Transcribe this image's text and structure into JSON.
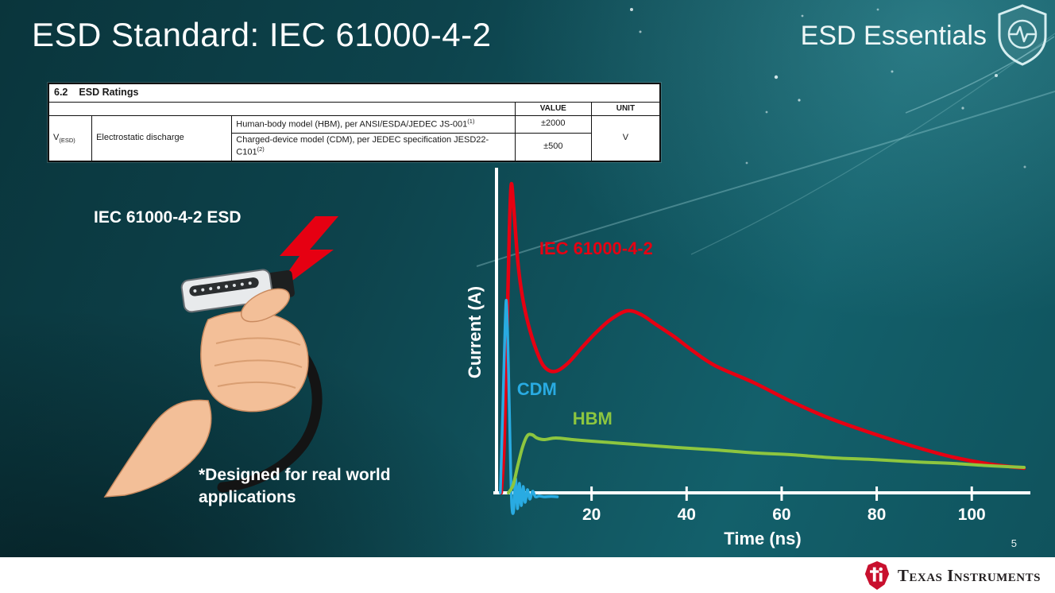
{
  "slide": {
    "title": "ESD Standard: IEC 61000-4-2",
    "brand": "ESD Essentials",
    "page_number": "5",
    "footer_brand": "Texas Instruments"
  },
  "colors": {
    "background_teal": "#0d434c",
    "accent_red": "#e60012",
    "cdm_blue": "#29abe2",
    "hbm_green": "#8dc63f"
  },
  "ratings_table": {
    "section_number": "6.2",
    "section_title": "ESD Ratings",
    "value_header": "VALUE",
    "unit_header": "UNIT",
    "symbol": "V",
    "symbol_sub": "(ESD)",
    "parameter": "Electrostatic discharge",
    "rows": [
      {
        "description": "Human-body model (HBM), per ANSI/ESDA/JEDEC JS-001",
        "footnote_ref": "(1)",
        "value": "±2000"
      },
      {
        "description": "Charged-device model (CDM), per JEDEC specification JESD22-C101",
        "footnote_ref": "(2)",
        "value": "±500"
      }
    ],
    "unit": "V"
  },
  "illustration": {
    "label": "IEC 61000-4-2 ESD",
    "caption_line1": "*Designed for real world",
    "caption_line2": "applications"
  },
  "chart_data": {
    "type": "line",
    "title": "",
    "xlabel": "Time (ns)",
    "ylabel": "Current (A)",
    "xlim": [
      0,
      112
    ],
    "ylim": [
      0,
      40
    ],
    "x_ticks": [
      20,
      40,
      60,
      80,
      100
    ],
    "grid": false,
    "legend_position": "inline-labels",
    "axis_color": "#ffffff",
    "series": [
      {
        "name": "IEC 61000-4-2",
        "color": "#e60012",
        "width": 4.5,
        "label_pos": {
          "x": 9,
          "y": 30
        },
        "points": [
          [
            1,
            0
          ],
          [
            1.6,
            6
          ],
          [
            2.2,
            20
          ],
          [
            2.7,
            33
          ],
          [
            3.1,
            38.8
          ],
          [
            3.6,
            36
          ],
          [
            4.5,
            29
          ],
          [
            5.5,
            24.5
          ],
          [
            7,
            20.5
          ],
          [
            9,
            17
          ],
          [
            10.5,
            15.6
          ],
          [
            12.5,
            15.3
          ],
          [
            15,
            16.3
          ],
          [
            18,
            18.3
          ],
          [
            21,
            20.2
          ],
          [
            24,
            21.8
          ],
          [
            27.5,
            22.9
          ],
          [
            30.5,
            22.4
          ],
          [
            33.5,
            21.2
          ],
          [
            37.5,
            19.6
          ],
          [
            41,
            18
          ],
          [
            46,
            16
          ],
          [
            54,
            13.9
          ],
          [
            62,
            11.5
          ],
          [
            70,
            9.4
          ],
          [
            79,
            7.5
          ],
          [
            88,
            5.8
          ],
          [
            96,
            4.5
          ],
          [
            104,
            3.6
          ],
          [
            111,
            3.1
          ]
        ]
      },
      {
        "name": "CDM",
        "color": "#29abe2",
        "width": 3.5,
        "label_pos": {
          "x": 4.3,
          "y": 12.3
        },
        "points": [
          [
            0.8,
            0
          ],
          [
            1.3,
            10
          ],
          [
            1.8,
            21
          ],
          [
            2.1,
            24
          ],
          [
            2.5,
            16
          ],
          [
            2.9,
            5
          ],
          [
            3.2,
            -1.5
          ],
          [
            3.6,
            -2.3
          ],
          [
            4,
            1.8
          ],
          [
            4.4,
            -2
          ],
          [
            4.8,
            1.2
          ],
          [
            5.2,
            -1.6
          ],
          [
            5.6,
            0.8
          ],
          [
            6,
            -1.2
          ],
          [
            6.5,
            0.4
          ],
          [
            7,
            -0.8
          ],
          [
            7.6,
            0.2
          ],
          [
            8.2,
            -0.5
          ],
          [
            9,
            -0.4
          ],
          [
            10,
            -0.5
          ],
          [
            11.5,
            -0.45
          ],
          [
            12.8,
            -0.5
          ]
        ]
      },
      {
        "name": "HBM",
        "color": "#8dc63f",
        "width": 4,
        "label_pos": {
          "x": 16,
          "y": 8.6
        },
        "points": [
          [
            2.5,
            0
          ],
          [
            3.5,
            1
          ],
          [
            4.5,
            3.5
          ],
          [
            5.5,
            5.8
          ],
          [
            6.5,
            7.2
          ],
          [
            7.5,
            7.3
          ],
          [
            8.5,
            6.9
          ],
          [
            10,
            6.7
          ],
          [
            12.5,
            6.9
          ],
          [
            16,
            6.7
          ],
          [
            20,
            6.5
          ],
          [
            29,
            6.1
          ],
          [
            38,
            5.7
          ],
          [
            46,
            5.4
          ],
          [
            55,
            5
          ],
          [
            62,
            4.8
          ],
          [
            71,
            4.4
          ],
          [
            79,
            4.2
          ],
          [
            88,
            3.9
          ],
          [
            96,
            3.7
          ],
          [
            104,
            3.4
          ],
          [
            111,
            3.2
          ]
        ]
      }
    ]
  }
}
